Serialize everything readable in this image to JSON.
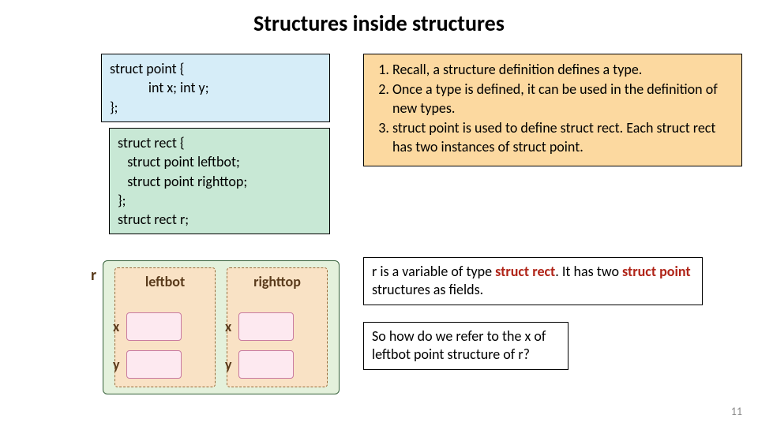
{
  "title": "Structures inside structures",
  "code1": {
    "line1": "struct point {",
    "line2_indent": "            int x; int y;",
    "line3": "};"
  },
  "code2": {
    "line1": "struct rect {",
    "line2": "   struct point leftbot;",
    "line3": "   struct point righttop;",
    "line4": "};",
    "line5": "struct rect r;"
  },
  "recall": {
    "items": [
      "Recall, a structure definition defines a type.",
      "Once a type is defined, it can be used in the definition of new types.",
      "struct point is used to define struct rect. Each struct rect has two instances of struct point."
    ]
  },
  "diagram": {
    "r_label": "r",
    "leftbot": "leftbot",
    "righttop": "righttop",
    "x": "x",
    "y": "y"
  },
  "textbox1": {
    "pre": "r is a variable of type ",
    "hl1": "struct rect",
    "mid": ". It has two ",
    "hl2": "struct point",
    "post": " structures as fields."
  },
  "textbox2": "So how do we refer to the x of leftbot point structure of r?",
  "page_number": "11",
  "colors": {
    "code1_bg": "#d6edf8",
    "code2_bg": "#c8e8d5",
    "recall_bg": "#fcd9a0",
    "diagram_bg": "#e4f1dc",
    "inner_bg": "#f9e2c5",
    "cell_bg": "#fde9f0",
    "highlight_text": "#b02418"
  }
}
